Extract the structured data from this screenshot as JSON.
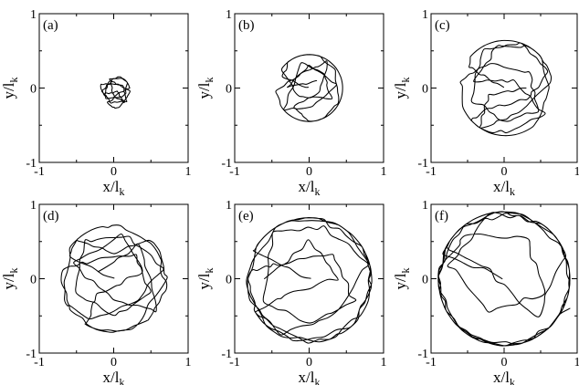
{
  "chart_data": [
    {
      "type": "line",
      "panel_label": "(a)",
      "xlabel": "x/l",
      "xlabel_sub": "k",
      "ylabel": "y/l",
      "ylabel_sub": "k",
      "xlim": [
        -1,
        1
      ],
      "ylim": [
        -1,
        1
      ],
      "xticks": [
        "-1",
        "0",
        "1"
      ],
      "yticks": [
        "-1",
        "0",
        "1"
      ],
      "series": [
        {
          "radius": 0.22,
          "center": [
            0.0,
            -0.05
          ],
          "trajectory": [
            [
              0.04,
              -0.05
            ],
            [
              -0.12,
              -0.08
            ],
            [
              -0.05,
              0.1
            ],
            [
              0.12,
              0.03
            ],
            [
              0.18,
              -0.18
            ],
            [
              -0.03,
              -0.2
            ],
            [
              -0.15,
              -0.05
            ],
            [
              -0.02,
              0.12
            ],
            [
              0.2,
              0.12
            ],
            [
              0.15,
              -0.1
            ],
            [
              -0.1,
              -0.15
            ],
            [
              -0.18,
              0.05
            ],
            [
              0.05,
              0.05
            ],
            [
              0.22,
              -0.05
            ],
            [
              0.05,
              -0.3
            ],
            [
              -0.08,
              -0.2
            ],
            [
              0.1,
              -0.05
            ],
            [
              0.25,
              0.02
            ],
            [
              0.1,
              0.15
            ],
            [
              -0.05,
              0.12
            ],
            [
              0.0,
              -0.1
            ],
            [
              0.15,
              -0.2
            ],
            [
              0.05,
              -0.05
            ]
          ]
        }
      ]
    },
    {
      "type": "line",
      "panel_label": "(b)",
      "xlabel": "x/l",
      "xlabel_sub": "k",
      "ylabel": "y/l",
      "ylabel_sub": "k",
      "xlim": [
        -1,
        1
      ],
      "ylim": [
        -1,
        1
      ],
      "xticks": [
        "-1",
        "0",
        "1"
      ],
      "yticks": [
        "-1",
        "0",
        "1"
      ],
      "series": [
        {
          "radius": 0.45,
          "center": [
            0.0,
            0.0
          ],
          "trajectory": [
            [
              0.0,
              0.0
            ],
            [
              -0.35,
              0.15
            ],
            [
              -0.25,
              0.45
            ],
            [
              0.05,
              0.5
            ],
            [
              0.35,
              0.25
            ],
            [
              0.4,
              -0.2
            ],
            [
              0.1,
              -0.5
            ],
            [
              -0.3,
              -0.4
            ],
            [
              -0.45,
              -0.05
            ],
            [
              -0.1,
              0.2
            ],
            [
              0.25,
              0.35
            ],
            [
              0.15,
              -0.05
            ],
            [
              -0.2,
              -0.25
            ],
            [
              0.0,
              -0.45
            ],
            [
              0.45,
              -0.35
            ],
            [
              0.5,
              0.1
            ],
            [
              0.2,
              0.55
            ],
            [
              -0.2,
              0.6
            ],
            [
              -0.4,
              0.3
            ],
            [
              -0.15,
              -0.1
            ],
            [
              0.3,
              -0.15
            ],
            [
              0.2,
              0.2
            ],
            [
              -0.1,
              0.35
            ],
            [
              -0.35,
              -0.3
            ],
            [
              0.05,
              -0.25
            ],
            [
              0.38,
              0.05
            ],
            [
              0.0,
              0.3
            ],
            [
              -0.3,
              0.0
            ],
            [
              0.1,
              0.1
            ]
          ]
        }
      ]
    },
    {
      "type": "line",
      "panel_label": "(c)",
      "xlabel": "x/l",
      "xlabel_sub": "k",
      "ylabel": "y/l",
      "ylabel_sub": "k",
      "xlim": [
        -1,
        1
      ],
      "ylim": [
        -1,
        1
      ],
      "xticks": [
        "-1",
        "0",
        "1"
      ],
      "yticks": [
        "-1",
        "0",
        "1"
      ],
      "series": [
        {
          "radius": 0.64,
          "center": [
            0.02,
            0.0
          ],
          "trajectory": [
            [
              0.0,
              0.0
            ],
            [
              -0.5,
              0.3
            ],
            [
              -0.4,
              0.6
            ],
            [
              0.1,
              0.72
            ],
            [
              0.5,
              0.45
            ],
            [
              0.62,
              -0.05
            ],
            [
              0.4,
              -0.55
            ],
            [
              -0.1,
              -0.7
            ],
            [
              -0.55,
              -0.4
            ],
            [
              -0.6,
              0.1
            ],
            [
              -0.2,
              0.35
            ],
            [
              0.35,
              0.2
            ],
            [
              0.45,
              -0.3
            ],
            [
              0.0,
              -0.45
            ],
            [
              -0.45,
              -0.15
            ],
            [
              -0.3,
              0.5
            ],
            [
              0.25,
              0.6
            ],
            [
              0.6,
              0.2
            ],
            [
              0.3,
              -0.15
            ],
            [
              -0.25,
              -0.3
            ],
            [
              -0.6,
              -0.55
            ],
            [
              0.05,
              -0.6
            ],
            [
              0.55,
              -0.35
            ],
            [
              0.15,
              0.1
            ],
            [
              -0.4,
              0.1
            ],
            [
              -0.1,
              0.55
            ],
            [
              0.4,
              0.55
            ],
            [
              0.7,
              0.15
            ],
            [
              0.2,
              -0.35
            ],
            [
              -0.35,
              -0.55
            ],
            [
              -0.2,
              -0.1
            ],
            [
              0.3,
              0.0
            ]
          ]
        }
      ]
    },
    {
      "type": "line",
      "panel_label": "(d)",
      "xlabel": "x/l",
      "xlabel_sub": "k",
      "ylabel": "y/l",
      "ylabel_sub": "k",
      "xlim": [
        -1,
        1
      ],
      "ylim": [
        -1,
        1
      ],
      "xticks": [
        "-1",
        "0",
        "1"
      ],
      "yticks": [
        "-1",
        "0",
        "1"
      ],
      "series": [
        {
          "radius": 0.72,
          "center": [
            0.0,
            0.0
          ],
          "trajectory": [
            [
              0.0,
              0.0
            ],
            [
              -0.6,
              0.3
            ],
            [
              -0.45,
              0.65
            ],
            [
              0.1,
              0.72
            ],
            [
              0.6,
              0.4
            ],
            [
              0.7,
              -0.15
            ],
            [
              0.45,
              -0.6
            ],
            [
              -0.1,
              -0.75
            ],
            [
              -0.6,
              -0.45
            ],
            [
              -0.7,
              0.1
            ],
            [
              -0.3,
              0.25
            ],
            [
              0.3,
              0.3
            ],
            [
              0.5,
              -0.2
            ],
            [
              0.0,
              -0.5
            ],
            [
              -0.5,
              -0.2
            ],
            [
              -0.4,
              0.5
            ],
            [
              0.2,
              0.55
            ],
            [
              0.65,
              0.15
            ],
            [
              0.3,
              -0.3
            ],
            [
              -0.3,
              -0.55
            ],
            [
              -0.7,
              -0.3
            ],
            [
              -0.55,
              0.55
            ],
            [
              0.0,
              0.35
            ],
            [
              0.55,
              0.55
            ],
            [
              0.72,
              0.0
            ],
            [
              0.25,
              -0.7
            ],
            [
              -0.4,
              -0.65
            ],
            [
              -0.2,
              -0.2
            ],
            [
              0.4,
              0.1
            ],
            [
              0.1,
              0.6
            ],
            [
              -0.55,
              0.2
            ],
            [
              0.0,
              -0.3
            ],
            [
              0.6,
              -0.45
            ],
            [
              0.35,
              0.45
            ],
            [
              -0.2,
              0.1
            ]
          ]
        }
      ]
    },
    {
      "type": "line",
      "panel_label": "(e)",
      "xlabel": "x/l",
      "xlabel_sub": "k",
      "ylabel": "y/l",
      "ylabel_sub": "k",
      "xlim": [
        -1,
        1
      ],
      "ylim": [
        -1,
        1
      ],
      "xticks": [
        "-1",
        "0",
        "1"
      ],
      "yticks": [
        "-1",
        "0",
        "1"
      ],
      "series": [
        {
          "radius": 0.84,
          "center": [
            0.0,
            -0.02
          ],
          "trajectory": [
            [
              0.0,
              0.0
            ],
            [
              -0.75,
              0.35
            ],
            [
              -0.55,
              0.75
            ],
            [
              0.1,
              0.85
            ],
            [
              0.7,
              0.45
            ],
            [
              0.85,
              -0.1
            ],
            [
              0.55,
              -0.7
            ],
            [
              -0.05,
              -0.88
            ],
            [
              -0.7,
              -0.5
            ],
            [
              -0.82,
              0.1
            ],
            [
              -0.4,
              0.2
            ],
            [
              0.3,
              0.35
            ],
            [
              0.6,
              -0.3
            ],
            [
              0.0,
              -0.6
            ],
            [
              -0.6,
              -0.3
            ],
            [
              -0.5,
              0.6
            ],
            [
              0.2,
              0.7
            ],
            [
              0.8,
              0.2
            ],
            [
              0.4,
              -0.45
            ],
            [
              -0.35,
              -0.75
            ],
            [
              -0.85,
              -0.25
            ],
            [
              -0.7,
              0.6
            ],
            [
              0.0,
              0.9
            ],
            [
              0.75,
              0.55
            ],
            [
              0.85,
              -0.3
            ],
            [
              0.25,
              -0.85
            ],
            [
              -0.5,
              -0.78
            ],
            [
              -0.9,
              0.0
            ],
            [
              -0.4,
              0.8
            ],
            [
              0.45,
              0.75
            ],
            [
              0.9,
              0.05
            ],
            [
              0.6,
              -0.65
            ],
            [
              -0.2,
              -0.85
            ],
            [
              -0.78,
              -0.45
            ],
            [
              -0.3,
              -0.2
            ],
            [
              0.4,
              0.0
            ],
            [
              0.0,
              0.5
            ],
            [
              -0.6,
              0.0
            ]
          ]
        }
      ]
    },
    {
      "type": "line",
      "panel_label": "(f)",
      "xlabel": "x/l",
      "xlabel_sub": "k",
      "ylabel": "y/l",
      "ylabel_sub": "k",
      "xlim": [
        -1,
        1
      ],
      "ylim": [
        -1,
        1
      ],
      "xticks": [
        "-1",
        "0",
        "1"
      ],
      "yticks": [
        "-1",
        "0",
        "1"
      ],
      "series": [
        {
          "radius": 0.9,
          "center": [
            0.0,
            0.0
          ],
          "trajectory": [
            [
              0.0,
              0.0
            ],
            [
              -0.85,
              0.35
            ],
            [
              -0.6,
              0.85
            ],
            [
              0.1,
              0.95
            ],
            [
              0.8,
              0.55
            ],
            [
              0.92,
              -0.15
            ],
            [
              0.6,
              -0.78
            ],
            [
              -0.1,
              -0.92
            ],
            [
              -0.78,
              -0.55
            ],
            [
              -0.92,
              0.1
            ],
            [
              -0.5,
              0.6
            ],
            [
              0.3,
              0.55
            ],
            [
              0.55,
              -0.2
            ],
            [
              -0.2,
              -0.45
            ],
            [
              -0.75,
              0.2
            ],
            [
              -0.2,
              0.9
            ],
            [
              0.6,
              0.75
            ],
            [
              0.95,
              0.1
            ],
            [
              0.7,
              -0.65
            ],
            [
              0.0,
              -0.95
            ],
            [
              -0.7,
              -0.7
            ],
            [
              -0.95,
              -0.1
            ],
            [
              -0.7,
              0.65
            ],
            [
              0.0,
              0.92
            ],
            [
              0.75,
              0.62
            ],
            [
              0.95,
              -0.2
            ],
            [
              0.5,
              -0.85
            ],
            [
              -0.3,
              -0.9
            ],
            [
              -0.9,
              -0.35
            ],
            [
              -0.85,
              0.45
            ],
            [
              -0.2,
              0.1
            ],
            [
              0.45,
              -0.5
            ],
            [
              0.85,
              0.35
            ],
            [
              0.25,
              0.9
            ],
            [
              -0.55,
              0.75
            ],
            [
              -0.95,
              0.0
            ],
            [
              -0.55,
              -0.8
            ],
            [
              0.3,
              -0.9
            ],
            [
              0.9,
              -0.4
            ]
          ]
        }
      ]
    }
  ]
}
